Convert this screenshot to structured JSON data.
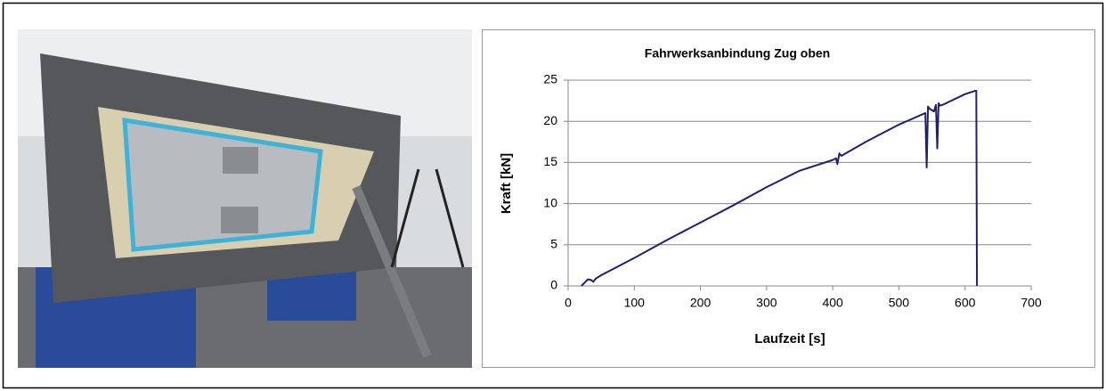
{
  "chart_data": {
    "type": "line",
    "title": "Fahrwerksanbindung Zug oben",
    "x_label": "Laufzeit [s]",
    "y_label": "Kraft [kN]",
    "x": [
      20,
      25,
      30,
      35,
      38,
      42,
      50,
      100,
      150,
      200,
      250,
      300,
      350,
      400,
      405,
      407,
      410,
      413,
      450,
      500,
      540,
      542,
      544,
      547,
      553,
      556,
      558,
      560,
      562,
      566,
      600,
      615,
      617,
      618
    ],
    "series": [
      {
        "color": "#1f1f7a",
        "values": [
          0,
          0.4,
          0.8,
          0.7,
          0.5,
          0.9,
          1.3,
          3.4,
          5.6,
          7.7,
          9.8,
          12.0,
          14.0,
          15.3,
          15.5,
          14.8,
          16.1,
          15.8,
          17.5,
          19.6,
          21.0,
          14.4,
          21.8,
          21.5,
          21.2,
          22.0,
          16.7,
          22.2,
          21.9,
          22.0,
          23.3,
          23.7,
          23.7,
          0
        ]
      }
    ],
    "xlim": [
      0,
      700
    ],
    "xticks": [
      0,
      100,
      200,
      300,
      400,
      500,
      600,
      700
    ],
    "ylim": [
      0,
      25
    ],
    "yticks": [
      0,
      5,
      10,
      15,
      20,
      25
    ],
    "grid": true
  }
}
